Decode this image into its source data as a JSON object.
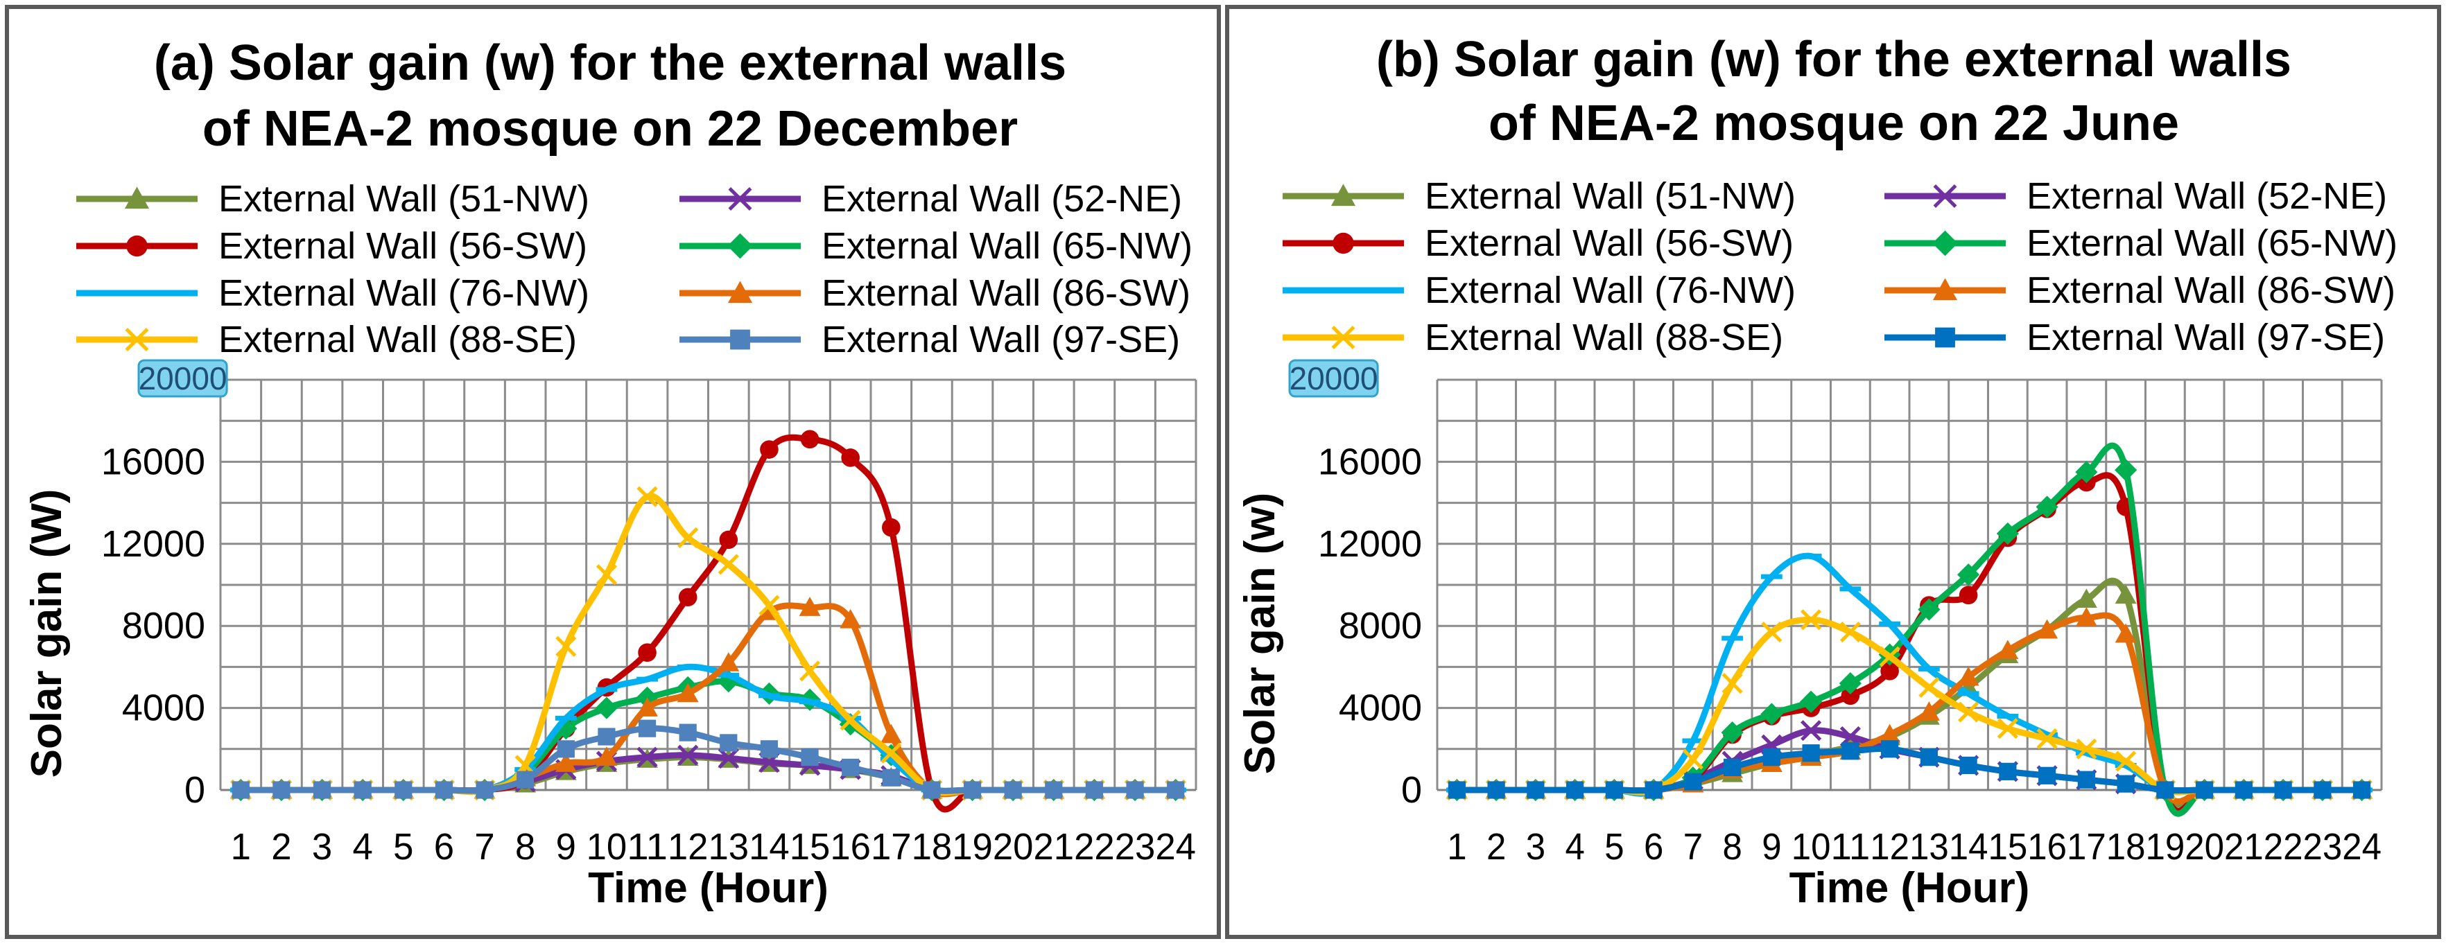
{
  "chart_data": [
    {
      "type": "line",
      "title_lines": [
        "(a) Solar gain (w) for the external walls",
        "of NEA-2 mosque on 22 December"
      ],
      "xlabel": "Time (Hour)",
      "ylabel": "Solar gain (W)",
      "ymax_badge": "20000",
      "ylim": [
        0,
        20000
      ],
      "yticks": [
        "0",
        "4000",
        "8000",
        "12000",
        "16000"
      ],
      "categories": [
        "1",
        "2",
        "3",
        "4",
        "5",
        "6",
        "7",
        "8",
        "9",
        "10",
        "11",
        "12",
        "13",
        "14",
        "15",
        "16",
        "17",
        "18",
        "19",
        "20",
        "21",
        "22",
        "23",
        "24"
      ],
      "series": [
        {
          "name": "External Wall (51-NW)",
          "color": "#77933C",
          "marker": "triangle",
          "values": [
            0,
            0,
            0,
            0,
            0,
            0,
            0,
            300,
            900,
            1300,
            1500,
            1600,
            1500,
            1300,
            1200,
            1000,
            600,
            0,
            0,
            0,
            0,
            0,
            0,
            0
          ]
        },
        {
          "name": "External Wall (52-NE)",
          "color": "#7030A0",
          "marker": "x",
          "values": [
            0,
            0,
            0,
            0,
            0,
            0,
            0,
            400,
            1000,
            1400,
            1600,
            1700,
            1550,
            1350,
            1200,
            1000,
            700,
            0,
            0,
            0,
            0,
            0,
            0,
            0
          ]
        },
        {
          "name": "External Wall (56-SW)",
          "color": "#C00000",
          "marker": "circle",
          "values": [
            0,
            0,
            0,
            0,
            0,
            0,
            0,
            500,
            3000,
            5000,
            6700,
            9400,
            12200,
            16600,
            17100,
            16200,
            12800,
            0,
            0,
            0,
            0,
            0,
            0,
            0
          ]
        },
        {
          "name": "External Wall (65-NW)",
          "color": "#00B050",
          "marker": "diamond",
          "values": [
            0,
            0,
            0,
            0,
            0,
            0,
            0,
            800,
            3000,
            4000,
            4500,
            5000,
            5300,
            4700,
            4400,
            3200,
            1700,
            0,
            0,
            0,
            0,
            0,
            0,
            0
          ]
        },
        {
          "name": "External Wall (76-NW)",
          "color": "#00B0F0",
          "marker": "dash",
          "values": [
            0,
            0,
            0,
            0,
            0,
            0,
            0,
            1000,
            3500,
            4900,
            5400,
            6000,
            5600,
            4600,
            4300,
            3500,
            1500,
            0,
            0,
            0,
            0,
            0,
            0,
            0
          ]
        },
        {
          "name": "External Wall (86-SW)",
          "color": "#E36C09",
          "marker": "triangle",
          "values": [
            0,
            0,
            0,
            0,
            0,
            0,
            0,
            600,
            1300,
            1600,
            4000,
            4700,
            6200,
            8700,
            8900,
            8300,
            2700,
            0,
            0,
            0,
            0,
            0,
            0,
            0
          ]
        },
        {
          "name": "External Wall (88-SE)",
          "color": "#FFC000",
          "marker": "x",
          "values": [
            0,
            0,
            0,
            0,
            0,
            0,
            0,
            1200,
            7000,
            10500,
            14300,
            12300,
            11000,
            9000,
            5800,
            3400,
            1800,
            0,
            0,
            0,
            0,
            0,
            0,
            0
          ]
        },
        {
          "name": "External Wall (97-SE)",
          "color": "#4F81BD",
          "marker": "square",
          "values": [
            0,
            0,
            0,
            0,
            0,
            0,
            0,
            500,
            2000,
            2600,
            3000,
            2800,
            2300,
            2000,
            1600,
            1100,
            600,
            0,
            0,
            0,
            0,
            0,
            0,
            0
          ]
        }
      ]
    },
    {
      "type": "line",
      "title_lines": [
        "(b) Solar gain (w) for the external walls",
        "of NEA-2 mosque on 22 June"
      ],
      "xlabel": "Time (Hour)",
      "ylabel": "Solar gain (w)",
      "ymax_badge": "20000",
      "ylim": [
        0,
        20000
      ],
      "yticks": [
        "0",
        "4000",
        "8000",
        "12000",
        "16000"
      ],
      "categories": [
        "1",
        "2",
        "3",
        "4",
        "5",
        "6",
        "7",
        "8",
        "9",
        "10",
        "11",
        "12",
        "13",
        "14",
        "15",
        "16",
        "17",
        "18",
        "19",
        "20",
        "21",
        "22",
        "23",
        "24"
      ],
      "series": [
        {
          "name": "External Wall (51-NW)",
          "color": "#77933C",
          "marker": "triangle",
          "values": [
            0,
            0,
            0,
            0,
            0,
            0,
            300,
            800,
            1300,
            1700,
            2100,
            2600,
            3600,
            5000,
            6600,
            7800,
            9300,
            9500,
            0,
            0,
            0,
            0,
            0,
            0
          ]
        },
        {
          "name": "External Wall (52-NE)",
          "color": "#7030A0",
          "marker": "x",
          "values": [
            0,
            0,
            0,
            0,
            0,
            0,
            500,
            1400,
            2200,
            2900,
            2600,
            2000,
            1600,
            1200,
            900,
            700,
            500,
            300,
            0,
            0,
            0,
            0,
            0,
            0
          ]
        },
        {
          "name": "External Wall (56-SW)",
          "color": "#C00000",
          "marker": "circle",
          "values": [
            0,
            0,
            0,
            0,
            0,
            0,
            500,
            2700,
            3600,
            4000,
            4600,
            5800,
            9000,
            9500,
            12300,
            13700,
            15000,
            13800,
            0,
            0,
            0,
            0,
            0,
            0
          ]
        },
        {
          "name": "External Wall (65-NW)",
          "color": "#00B050",
          "marker": "diamond",
          "values": [
            0,
            0,
            0,
            0,
            0,
            0,
            600,
            2800,
            3700,
            4300,
            5200,
            6600,
            8800,
            10500,
            12500,
            13800,
            15500,
            15600,
            0,
            0,
            0,
            0,
            0,
            0
          ]
        },
        {
          "name": "External Wall (76-NW)",
          "color": "#00B0F0",
          "marker": "dash",
          "values": [
            0,
            0,
            0,
            0,
            0,
            0,
            2400,
            7400,
            10400,
            11400,
            9800,
            8100,
            5900,
            4700,
            3600,
            2700,
            1800,
            1200,
            0,
            0,
            0,
            0,
            0,
            0
          ]
        },
        {
          "name": "External Wall (86-SW)",
          "color": "#E36C09",
          "marker": "triangle",
          "values": [
            0,
            0,
            0,
            0,
            0,
            0,
            300,
            1000,
            1300,
            1600,
            1900,
            2700,
            3800,
            5500,
            6800,
            7800,
            8400,
            7600,
            0,
            0,
            0,
            0,
            0,
            0
          ]
        },
        {
          "name": "External Wall (88-SE)",
          "color": "#FFC000",
          "marker": "x",
          "values": [
            0,
            0,
            0,
            0,
            0,
            0,
            1500,
            5200,
            7700,
            8300,
            7700,
            6500,
            5000,
            3800,
            3000,
            2500,
            2000,
            1400,
            0,
            0,
            0,
            0,
            0,
            0
          ]
        },
        {
          "name": "External Wall (97-SE)",
          "color": "#0070C0",
          "marker": "square",
          "values": [
            0,
            0,
            0,
            0,
            0,
            0,
            400,
            1100,
            1600,
            1800,
            1900,
            2000,
            1600,
            1200,
            900,
            700,
            500,
            300,
            0,
            0,
            0,
            0,
            0,
            0
          ]
        }
      ]
    }
  ]
}
